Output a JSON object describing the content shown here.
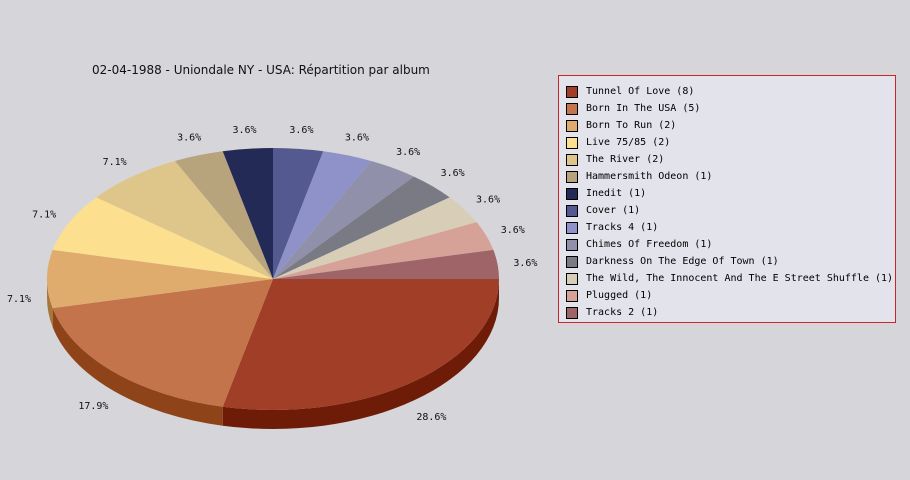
{
  "chart_data": {
    "type": "pie",
    "title": "02-04-1988 - Uniondale NY - USA:  Répartition par album",
    "slices": [
      {
        "label": "Tunnel Of Love (8)",
        "value": 8,
        "percent": "28.6%",
        "color": "#a03e28",
        "side": "#6e1c08"
      },
      {
        "label": "Born In The USA (5)",
        "value": 5,
        "percent": "17.9%",
        "color": "#c3744a",
        "side": "#8e4418"
      },
      {
        "label": "Born To Run (2)",
        "value": 2,
        "percent": "7.1%",
        "color": "#e0ac6e",
        "side": "#a8763a"
      },
      {
        "label": "Live 75/85 (2)",
        "value": 2,
        "percent": "7.1%",
        "color": "#fde08f",
        "side": "#c2a85c"
      },
      {
        "label": "The River (2)",
        "value": 2,
        "percent": "7.1%",
        "color": "#dec68a",
        "side": "#a8925a"
      },
      {
        "label": "Hammersmith Odeon  (1)",
        "value": 1,
        "percent": "3.6%",
        "color": "#b8a47c",
        "side": "#86744e"
      },
      {
        "label": "Inedit (1)",
        "value": 1,
        "percent": "3.6%",
        "color": "#232a56",
        "side": "#141834"
      },
      {
        "label": "Cover (1)",
        "value": 1,
        "percent": "3.6%",
        "color": "#545a8f",
        "side": "#363a64"
      },
      {
        "label": "Tracks 4 (1)",
        "value": 1,
        "percent": "3.6%",
        "color": "#8e92c8",
        "side": "#60649a"
      },
      {
        "label": "Chimes Of Freedom (1)",
        "value": 1,
        "percent": "3.6%",
        "color": "#9090aa",
        "side": "#66667e"
      },
      {
        "label": "Darkness On The Edge Of Town (1)",
        "value": 1,
        "percent": "3.6%",
        "color": "#7a7a84",
        "side": "#52525a"
      },
      {
        "label": "The Wild, The Innocent And The E Street Shuffle (1)",
        "value": 1,
        "percent": "3.6%",
        "color": "#d8ceb8",
        "side": "#a69c88"
      },
      {
        "label": "Plugged (1)",
        "value": 1,
        "percent": "3.6%",
        "color": "#d6a298",
        "side": "#a2726a"
      },
      {
        "label": "Tracks 2 (1)",
        "value": 1,
        "percent": "3.6%",
        "color": "#9e6468",
        "side": "#6e4044"
      }
    ]
  }
}
